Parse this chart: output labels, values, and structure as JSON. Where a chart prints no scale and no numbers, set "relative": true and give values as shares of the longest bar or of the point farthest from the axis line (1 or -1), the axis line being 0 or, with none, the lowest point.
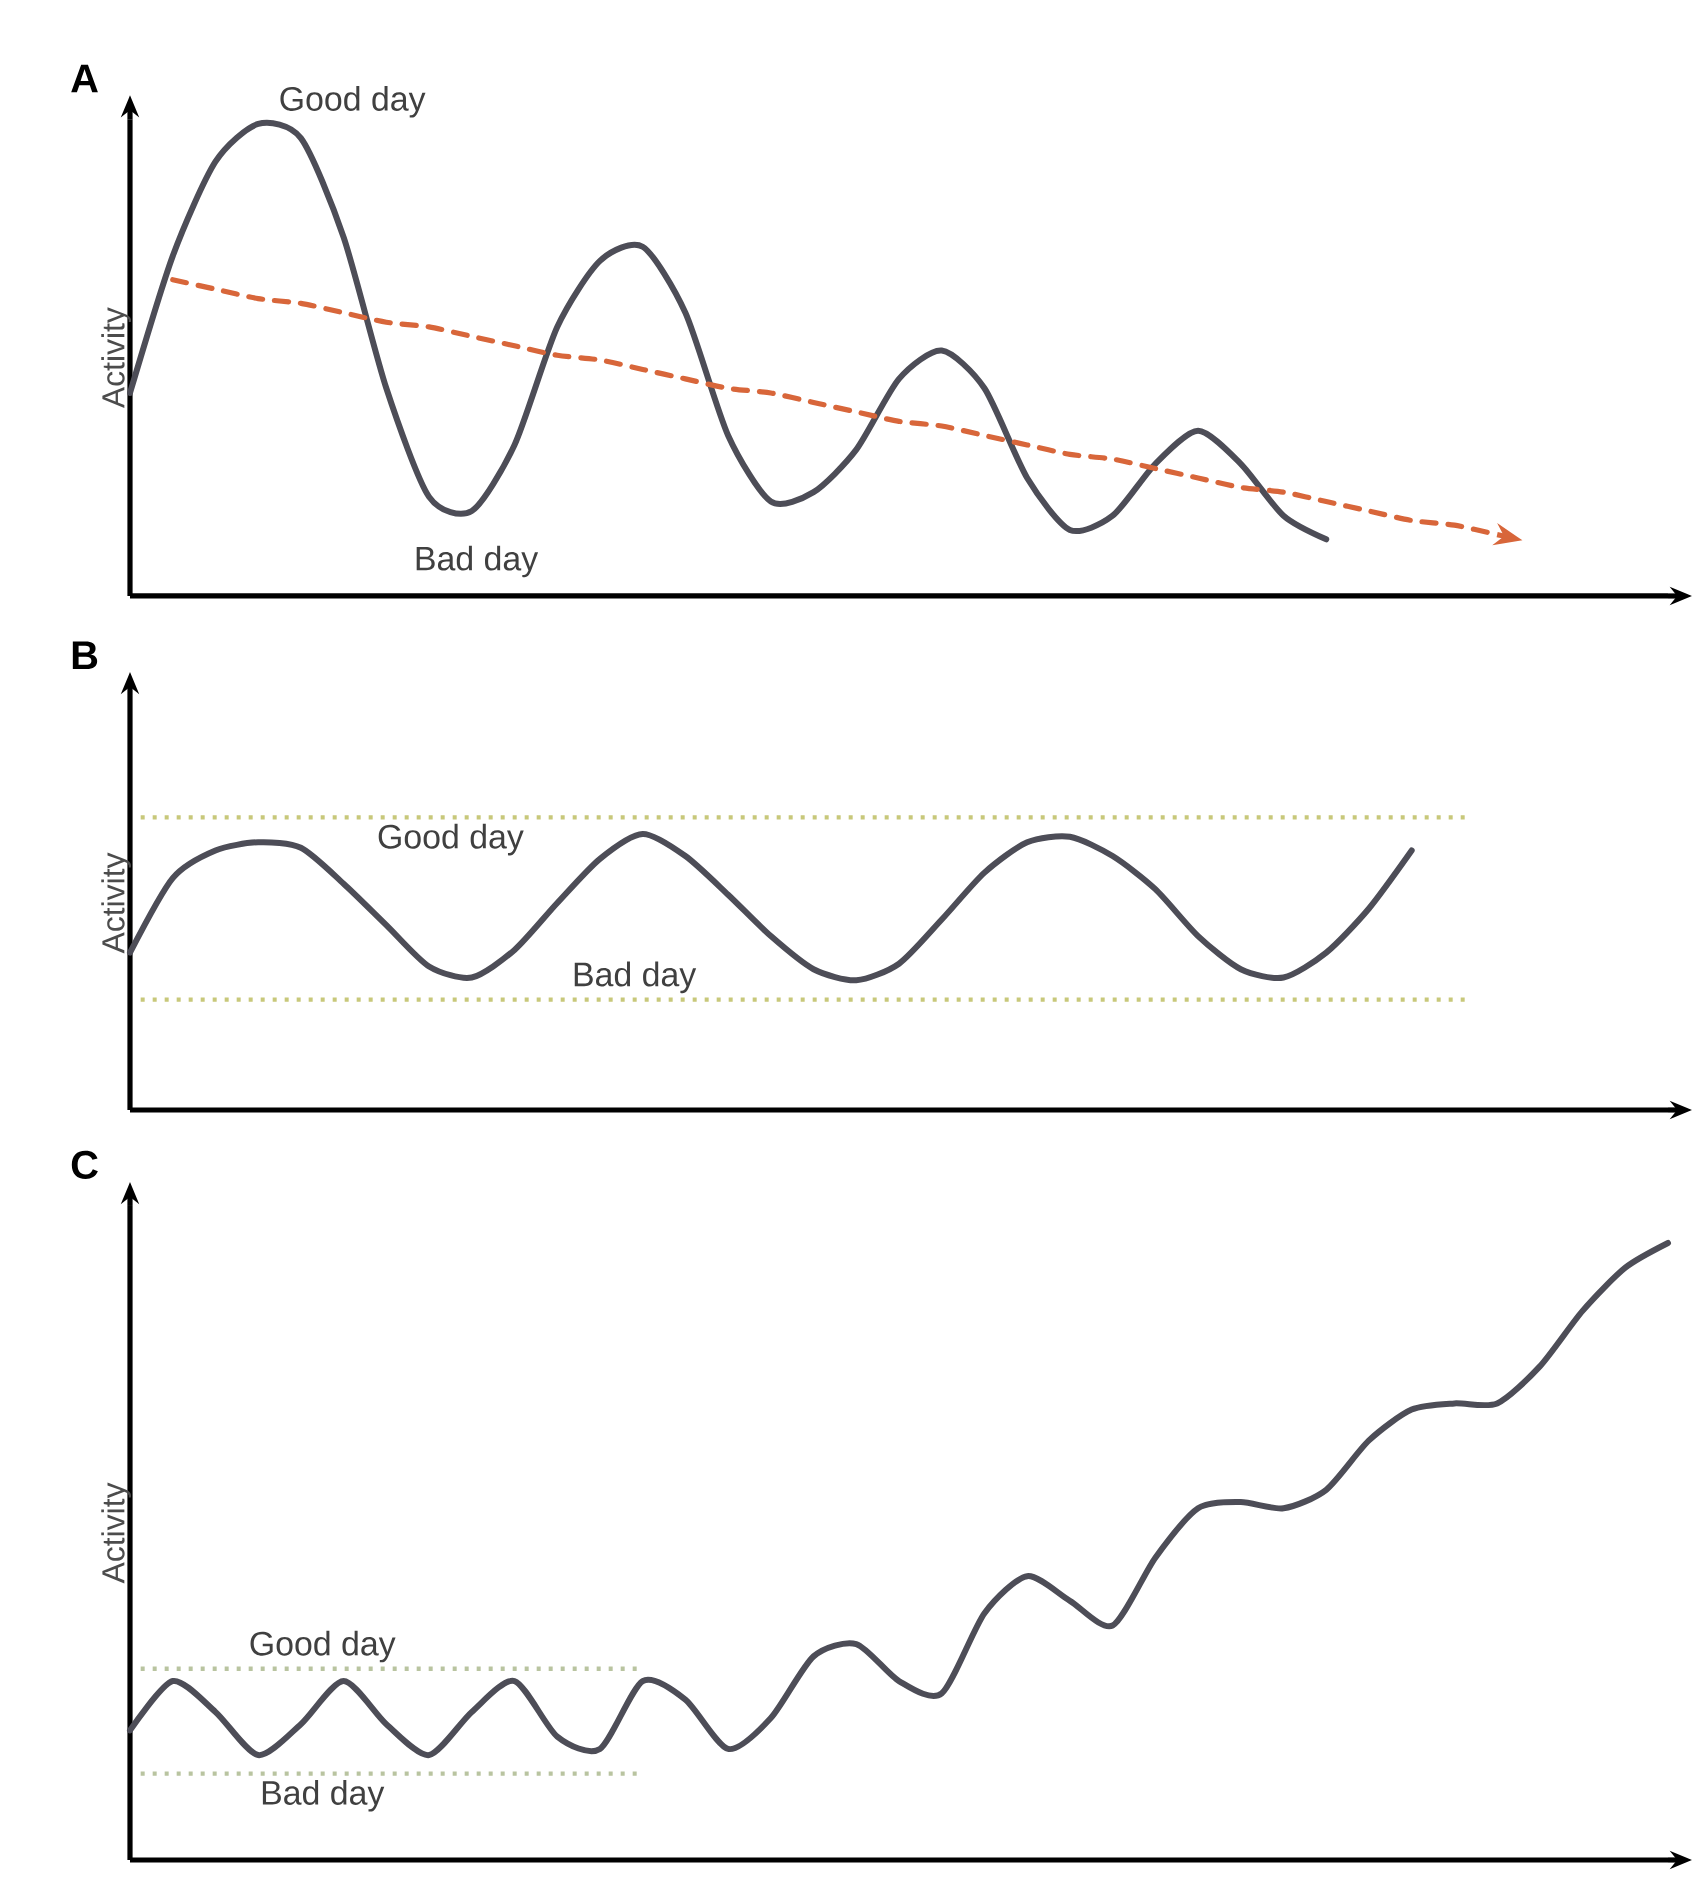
{
  "chart_data": [
    {
      "type": "line",
      "title": "A",
      "ylabel": "Activity",
      "relative": true,
      "categories": [
        null,
        null,
        null,
        null,
        null,
        null,
        null,
        null,
        null,
        null,
        null,
        null,
        null,
        null,
        null,
        null,
        null,
        null,
        null,
        null,
        null,
        null,
        null,
        null,
        null,
        null,
        null,
        null,
        null,
        null,
        null,
        null,
        null,
        null,
        null,
        null,
        null
      ],
      "series": [
        {
          "color": "#4d4d57",
          "values": [
            0.43,
            0.72,
            0.92,
            1.0,
            0.97,
            0.76,
            0.44,
            0.21,
            0.18,
            0.32,
            0.57,
            0.71,
            0.74,
            0.6,
            0.34,
            0.2,
            0.22,
            0.31,
            0.46,
            0.52,
            0.44,
            0.25,
            0.14,
            0.17,
            0.28,
            0.35,
            0.28,
            0.17,
            0.12,
            null,
            null,
            null,
            null,
            null,
            null,
            null,
            null
          ]
        },
        {
          "color": "#d8663a",
          "line_style": "dashed",
          "values": [
            null,
            0.67,
            0.65,
            0.63,
            0.62,
            0.6,
            0.58,
            0.57,
            0.55,
            0.53,
            0.51,
            0.5,
            0.48,
            0.46,
            0.44,
            0.43,
            0.41,
            0.39,
            0.37,
            0.36,
            0.34,
            0.32,
            0.3,
            0.29,
            0.27,
            0.25,
            0.23,
            0.22,
            0.2,
            0.18,
            0.16,
            0.15,
            0.13,
            null,
            null,
            null,
            null
          ]
        }
      ],
      "annotations": [
        "Good day",
        "Bad day"
      ]
    },
    {
      "type": "line",
      "title": "B",
      "ylabel": "Activity",
      "relative": true,
      "categories": [
        null,
        null,
        null,
        null,
        null,
        null,
        null,
        null,
        null,
        null,
        null,
        null,
        null,
        null,
        null,
        null,
        null,
        null,
        null,
        null,
        null,
        null,
        null,
        null,
        null,
        null,
        null,
        null,
        null,
        null,
        null,
        null,
        null,
        null,
        null,
        null,
        null
      ],
      "series": [
        {
          "color": "#4d4d57",
          "values": [
            0.57,
            0.84,
            0.94,
            0.97,
            0.95,
            0.82,
            0.67,
            0.52,
            0.48,
            0.58,
            0.75,
            0.91,
            1.0,
            0.92,
            0.78,
            0.63,
            0.51,
            0.47,
            0.53,
            0.69,
            0.86,
            0.97,
            0.99,
            0.92,
            0.8,
            0.63,
            0.51,
            0.48,
            0.57,
            0.73,
            0.94,
            null,
            null,
            null,
            null,
            null,
            null
          ]
        }
      ],
      "ref_lines": [
        {
          "axis": "y",
          "value": 1.06,
          "label": "Good day",
          "color": "#c8c87a",
          "line_style": "dotted"
        },
        {
          "axis": "y",
          "value": 0.4,
          "label": "Bad day",
          "color": "#c8c87a",
          "line_style": "dotted"
        }
      ]
    },
    {
      "type": "line",
      "title": "C",
      "ylabel": "Activity",
      "relative": true,
      "categories": [
        null,
        null,
        null,
        null,
        null,
        null,
        null,
        null,
        null,
        null,
        null,
        null,
        null,
        null,
        null,
        null,
        null,
        null,
        null,
        null,
        null,
        null,
        null,
        null,
        null,
        null,
        null,
        null,
        null,
        null,
        null,
        null,
        null,
        null,
        null,
        null,
        null
      ],
      "series": [
        {
          "color": "#4d4d57",
          "values": [
            0.21,
            0.29,
            0.24,
            0.17,
            0.22,
            0.29,
            0.22,
            0.17,
            0.24,
            0.29,
            0.2,
            0.18,
            0.29,
            0.26,
            0.18,
            0.23,
            0.33,
            0.35,
            0.29,
            0.27,
            0.4,
            0.46,
            0.42,
            0.38,
            0.49,
            0.57,
            0.58,
            0.57,
            0.6,
            0.68,
            0.73,
            0.74,
            0.74,
            0.8,
            0.89,
            0.96,
            1.0
          ]
        }
      ],
      "ref_lines": [
        {
          "axis": "y",
          "value": 0.31,
          "label": "Good day",
          "color": "#b9c4a0",
          "line_style": "dotted"
        },
        {
          "axis": "y",
          "value": 0.14,
          "label": "Bad day",
          "color": "#b9c4a0",
          "line_style": "dotted"
        }
      ]
    }
  ]
}
